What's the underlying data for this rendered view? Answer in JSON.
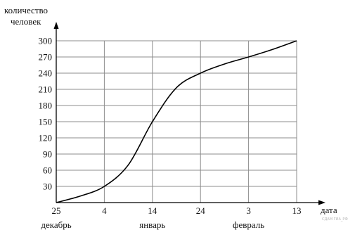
{
  "chart_data": {
    "type": "line",
    "ylabel_line1": "количество",
    "ylabel_line2": "человек",
    "xlabel": "дата",
    "x_ticks": [
      "25",
      "4",
      "14",
      "24",
      "3",
      "13"
    ],
    "month_labels": [
      {
        "text": "декабрь",
        "tick_index": 0
      },
      {
        "text": "январь",
        "tick_index": 2
      },
      {
        "text": "февраль",
        "tick_index": 4
      }
    ],
    "y_ticks": [
      30,
      60,
      90,
      120,
      150,
      180,
      210,
      240,
      270,
      300
    ],
    "ylim": [
      0,
      300
    ],
    "grid": true,
    "series": [
      {
        "x": [
          "25 декабрь",
          "30 декабрь",
          "4 январь",
          "9 январь",
          "14 январь",
          "19 январь",
          "24 январь",
          "29 январь",
          "3 февраль",
          "8 февраль",
          "13 февраль"
        ],
        "x_index": [
          0,
          0.5,
          1,
          1.5,
          2,
          2.5,
          3,
          3.5,
          4,
          4.5,
          5
        ],
        "values": [
          0,
          12,
          30,
          70,
          150,
          213,
          240,
          257,
          270,
          284,
          300
        ]
      }
    ]
  },
  "watermark": "СДАМ ГИА_РФ"
}
